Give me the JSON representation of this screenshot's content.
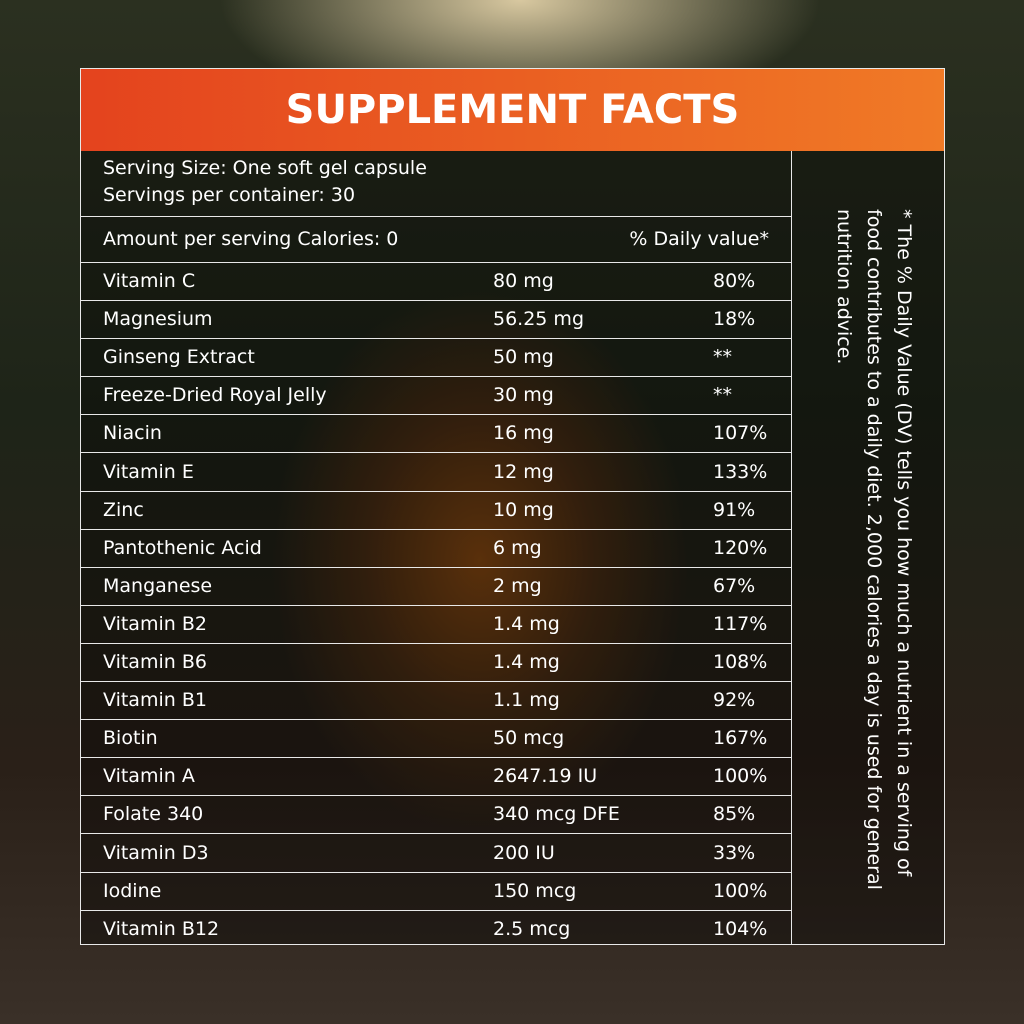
{
  "header": {
    "title": "SUPPLEMENT FACTS"
  },
  "serving": {
    "size": "Serving Size: One soft gel capsule",
    "per_container": "Servings per container: 30"
  },
  "table": {
    "head": {
      "amount": "Amount per serving Calories: 0",
      "daily_value": "% Daily value*"
    },
    "rows": [
      [
        "Vitamin C",
        "80 mg",
        "80%"
      ],
      [
        "Magnesium",
        "56.25 mg",
        "18%"
      ],
      [
        "Ginseng Extract",
        "50 mg",
        "**"
      ],
      [
        "Freeze-Dried Royal Jelly",
        "30 mg",
        "**"
      ],
      [
        "Niacin",
        "16 mg",
        "107%"
      ],
      [
        "Vitamin E",
        "12 mg",
        "133%"
      ],
      [
        "Zinc",
        "10 mg",
        "91%"
      ],
      [
        "Pantothenic Acid",
        "6 mg",
        "120%"
      ],
      [
        "Manganese",
        "2 mg",
        "67%"
      ],
      [
        "Vitamin B2",
        "1.4 mg",
        "117%"
      ],
      [
        "Vitamin B6",
        "1.4 mg",
        "108%"
      ],
      [
        "Vitamin B1",
        "1.1 mg",
        "92%"
      ],
      [
        "Biotin",
        "50 mcg",
        "167%"
      ],
      [
        "Vitamin A",
        "2647.19 IU",
        "100%"
      ],
      [
        "Folate 340",
        "340 mcg DFE",
        "85%"
      ],
      [
        "Vitamin D3",
        "200 IU",
        "33%"
      ],
      [
        "Iodine",
        "150 mcg",
        "100%"
      ],
      [
        "Vitamin B12",
        "2.5 mcg",
        "104%"
      ]
    ]
  },
  "footnote": "* The % Daily Value (DV) tells you how much a nutrient in a serving of food contributes to a daily diet. 2,000 calories a day is used for general nutrition advice."
}
